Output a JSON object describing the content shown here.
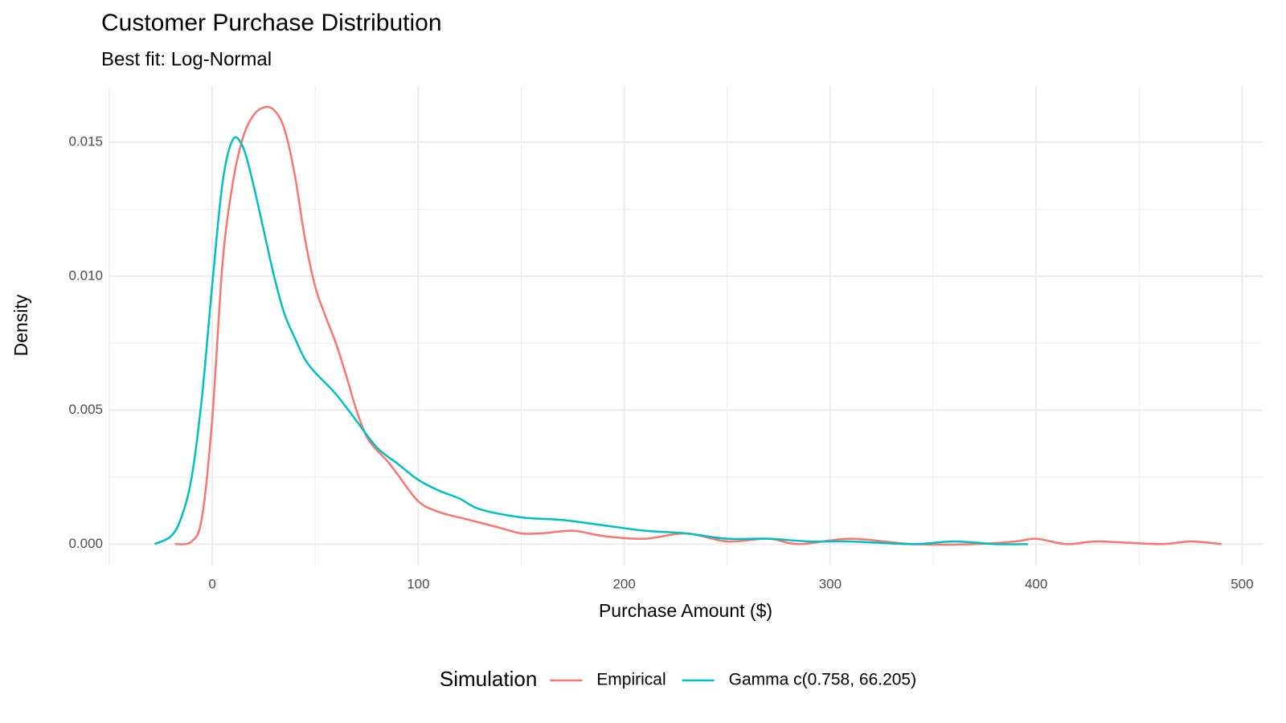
{
  "chart_data": {
    "type": "line",
    "title": "Customer Purchase Distribution",
    "subtitle": "Best fit: Log-Normal",
    "x_label": "Purchase Amount ($)",
    "y_label": "Density",
    "xlim": [
      -50,
      510
    ],
    "ylim": [
      -0.0008,
      0.0171
    ],
    "xticks": [
      0,
      100,
      200,
      300,
      400,
      500
    ],
    "yticks": [
      {
        "value": 0,
        "label": "0.000"
      },
      {
        "value": 0.005,
        "label": "0.005"
      },
      {
        "value": 0.01,
        "label": "0.010"
      },
      {
        "value": 0.015,
        "label": "0.015"
      }
    ],
    "x_minor_ticks": [
      -50,
      50,
      150,
      250,
      350,
      450
    ],
    "y_minor_ticks": [
      0.0025,
      0.0075,
      0.0125
    ],
    "grid": true,
    "legend": "bottom",
    "legend_title": "Simulation",
    "series": [
      {
        "name": "Empirical",
        "color": "#F8766D",
        "x": [
          -18,
          -10,
          -5,
          0,
          5,
          10,
          15,
          20,
          25,
          30,
          35,
          40,
          45,
          50,
          55,
          60,
          65,
          70,
          75,
          80,
          85,
          90,
          100,
          110,
          125,
          140,
          150,
          160,
          175,
          190,
          210,
          230,
          250,
          270,
          285,
          310,
          340,
          370,
          390,
          400,
          415,
          430,
          460,
          475,
          490
        ],
        "values": [
          0,
          0.0001,
          0.001,
          0.0047,
          0.0105,
          0.0135,
          0.0152,
          0.016,
          0.0163,
          0.0162,
          0.0155,
          0.0138,
          0.0114,
          0.0096,
          0.0085,
          0.0075,
          0.0063,
          0.005,
          0.004,
          0.0035,
          0.0031,
          0.0026,
          0.0016,
          0.0012,
          0.0009,
          0.0006,
          0.0004,
          0.0004,
          0.0005,
          0.0003,
          0.0002,
          0.0004,
          0.0001,
          0.0002,
          0,
          0.0002,
          0,
          0,
          0.0001,
          0.0002,
          0,
          0.0001,
          0,
          0.0001,
          0
        ]
      },
      {
        "name": "Gamma c(0.758, 66.205)",
        "color": "#00BFC4",
        "x": [
          -28,
          -20,
          -15,
          -10,
          -5,
          0,
          5,
          10,
          15,
          20,
          25,
          30,
          35,
          40,
          45,
          50,
          60,
          70,
          80,
          90,
          100,
          110,
          120,
          130,
          150,
          170,
          190,
          210,
          230,
          250,
          270,
          290,
          310,
          340,
          360,
          380,
          396
        ],
        "values": [
          0,
          0.0003,
          0.001,
          0.0025,
          0.0055,
          0.0097,
          0.0135,
          0.0151,
          0.0148,
          0.0134,
          0.0117,
          0.01,
          0.0086,
          0.0077,
          0.0069,
          0.0064,
          0.0056,
          0.0046,
          0.0036,
          0.003,
          0.0024,
          0.002,
          0.0017,
          0.0013,
          0.001,
          0.0009,
          0.0007,
          0.0005,
          0.0004,
          0.0002,
          0.0002,
          0.0001,
          0.0001,
          0,
          0.0001,
          0,
          0
        ]
      }
    ]
  }
}
